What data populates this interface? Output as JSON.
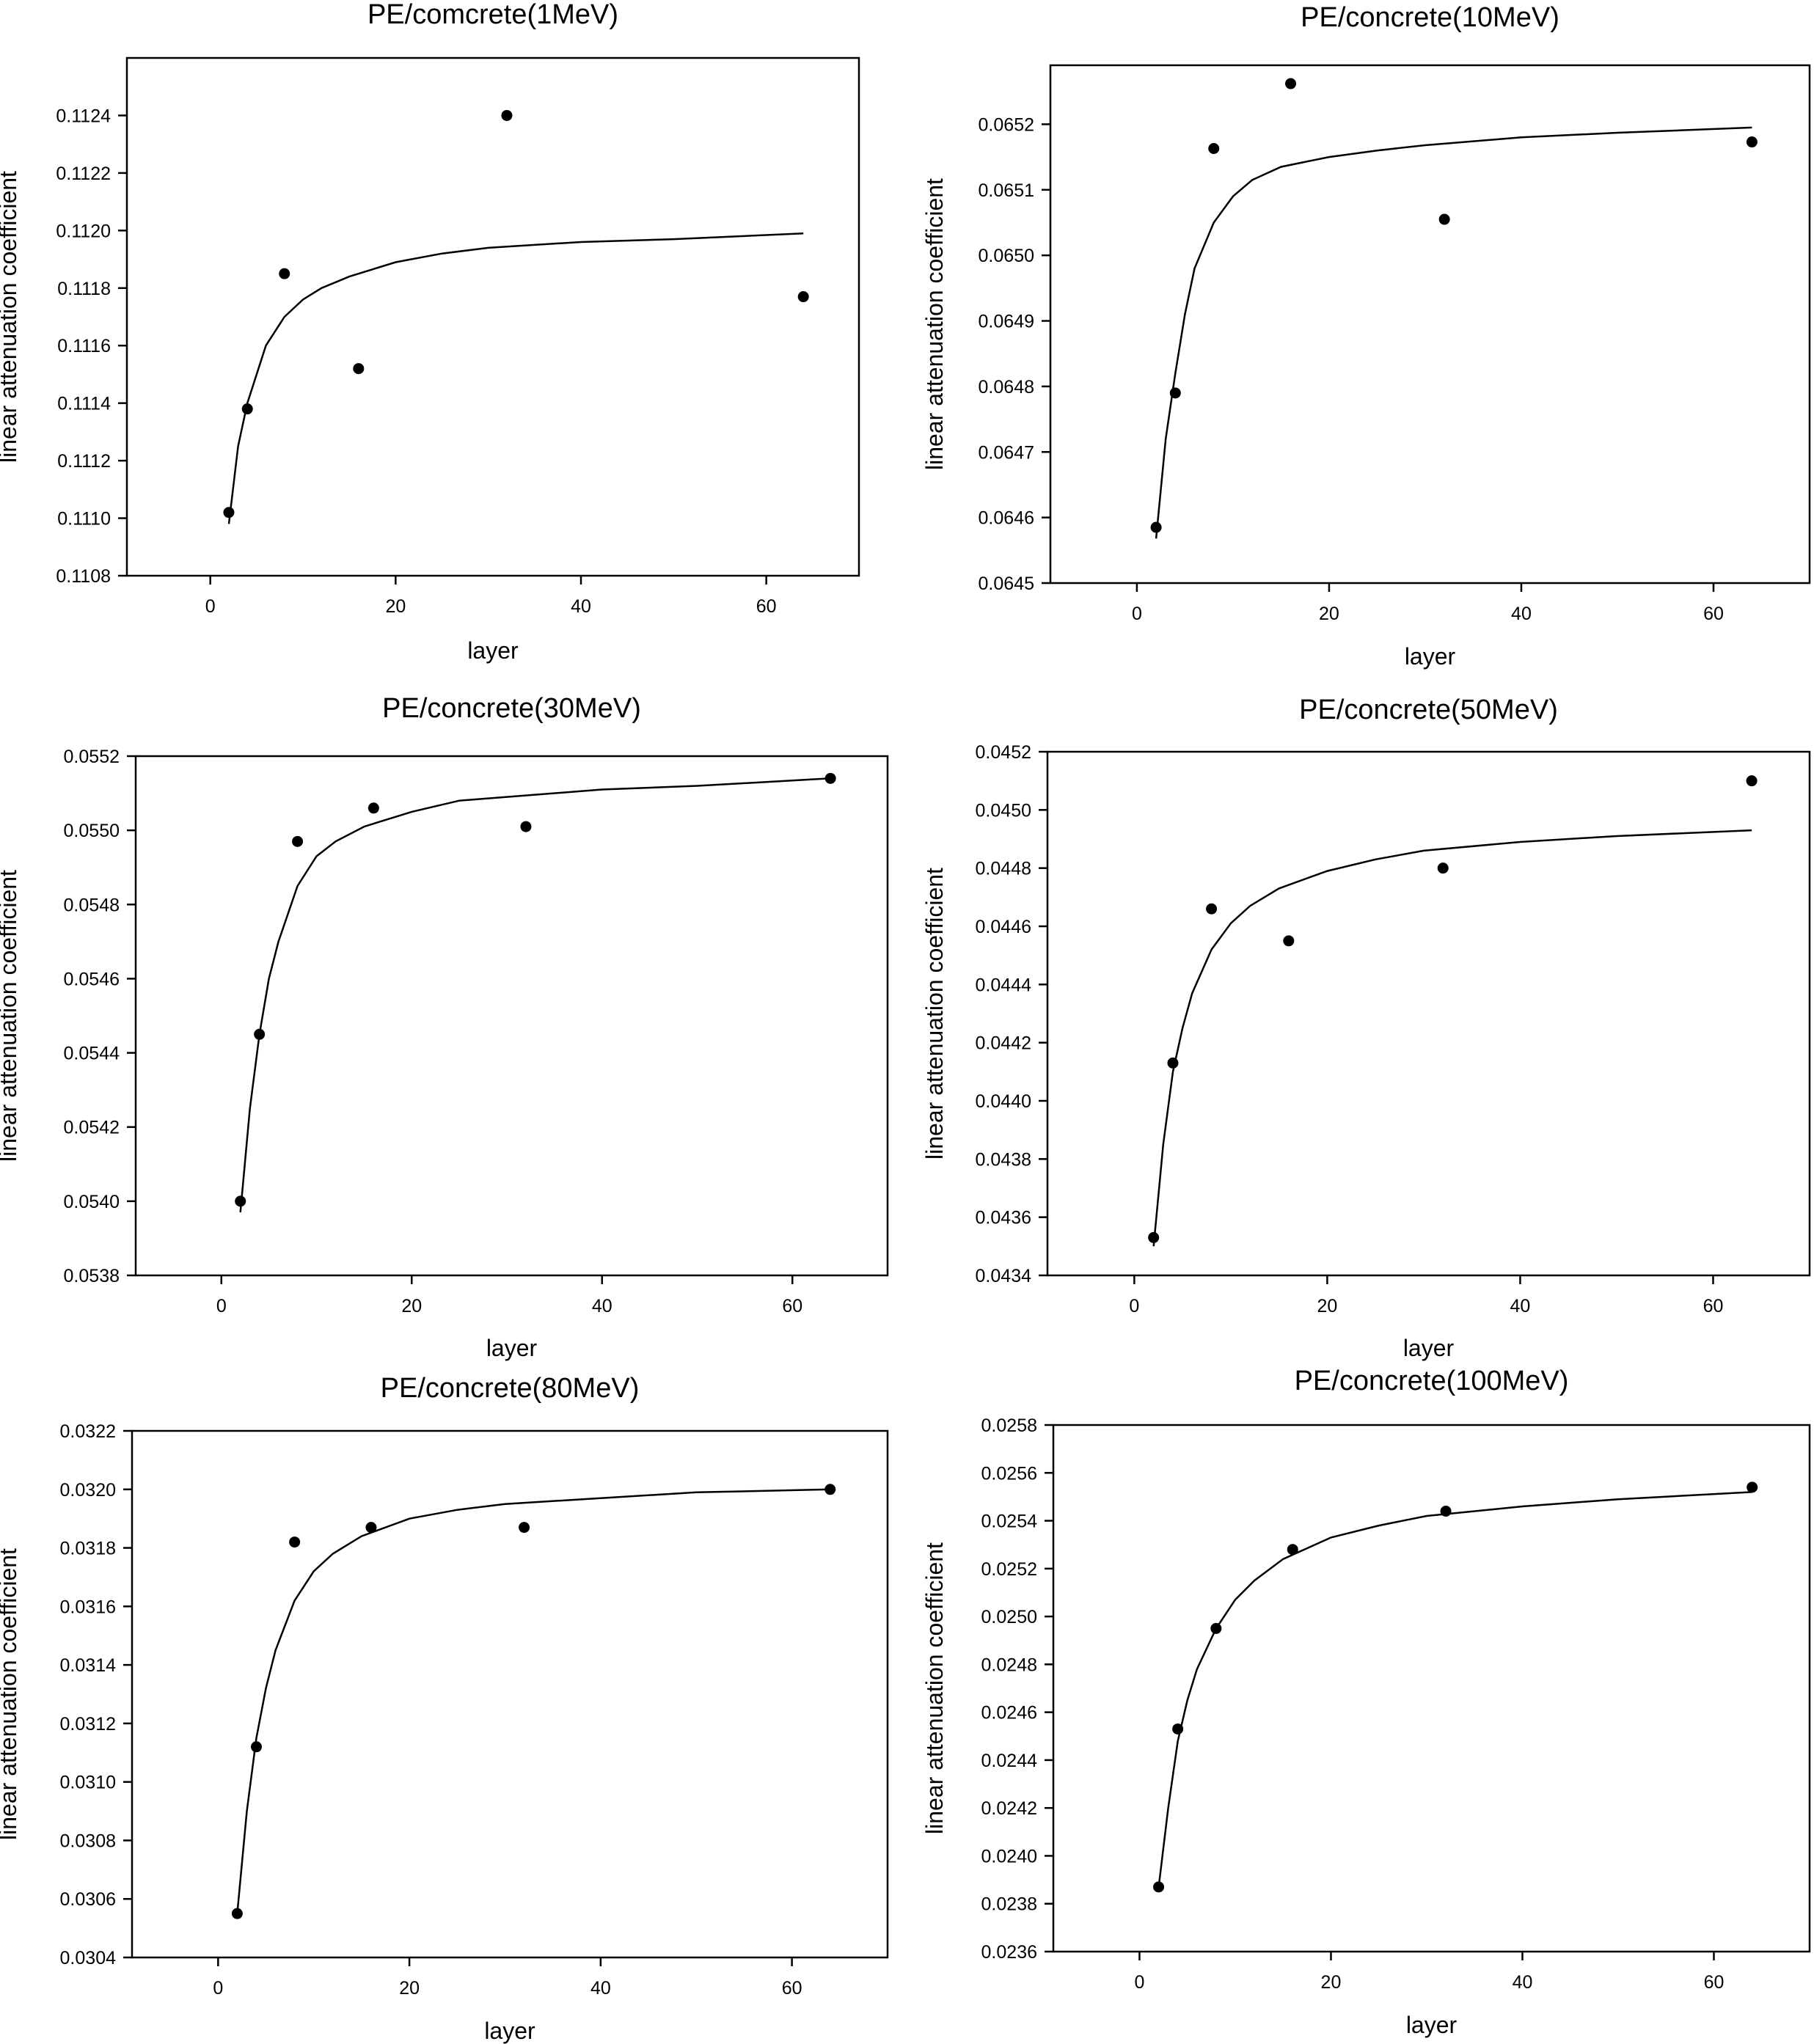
{
  "chart_data": [
    {
      "type": "scatter",
      "title": "PE/comcrete(1MeV)",
      "xlabel": "layer",
      "ylabel": "linear attenuation coefficient",
      "xlim": [
        -9,
        70
      ],
      "ylim": [
        0.1108,
        0.1126
      ],
      "x_ticks": [
        0,
        20,
        40,
        60
      ],
      "y_ticks": [
        0.1108,
        0.111,
        0.1112,
        0.1114,
        0.1116,
        0.1118,
        0.112,
        0.1122,
        0.1124
      ],
      "series": [
        {
          "points": [
            [
              2,
              0.11102
            ],
            [
              4,
              0.11138
            ],
            [
              8,
              0.11185
            ],
            [
              16,
              0.11152
            ],
            [
              32,
              0.1124
            ],
            [
              64,
              0.11177
            ]
          ],
          "fit": [
            [
              2,
              0.11098
            ],
            [
              3,
              0.11125
            ],
            [
              4,
              0.1114
            ],
            [
              6,
              0.1116
            ],
            [
              8,
              0.1117
            ],
            [
              10,
              0.11176
            ],
            [
              12,
              0.1118
            ],
            [
              15,
              0.11184
            ],
            [
              20,
              0.11189
            ],
            [
              25,
              0.11192
            ],
            [
              30,
              0.11194
            ],
            [
              35,
              0.11195
            ],
            [
              40,
              0.11196
            ],
            [
              50,
              0.11197
            ],
            [
              64,
              0.11199
            ]
          ]
        }
      ]
    },
    {
      "type": "scatter",
      "title": "PE/concrete(10MeV)",
      "xlabel": "layer",
      "ylabel": "linear attenuation coefficient",
      "xlim": [
        -9,
        70
      ],
      "ylim": [
        0.0645,
        0.06529
      ],
      "x_ticks": [
        0,
        20,
        40,
        60
      ],
      "y_ticks": [
        0.0645,
        0.0646,
        0.0647,
        0.0648,
        0.0649,
        0.065,
        0.0651,
        0.0652
      ],
      "series": [
        {
          "points": [
            [
              2,
              0.064585
            ],
            [
              4,
              0.06479
            ],
            [
              8,
              0.065163
            ],
            [
              16,
              0.065262
            ],
            [
              32,
              0.065055
            ],
            [
              64,
              0.065173
            ]
          ],
          "fit": [
            [
              2,
              0.064568
            ],
            [
              3,
              0.06472
            ],
            [
              4,
              0.06482
            ],
            [
              5,
              0.06491
            ],
            [
              6,
              0.06498
            ],
            [
              8,
              0.06505
            ],
            [
              10,
              0.06509
            ],
            [
              12,
              0.065115
            ],
            [
              15,
              0.065135
            ],
            [
              20,
              0.06515
            ],
            [
              25,
              0.06516
            ],
            [
              30,
              0.065168
            ],
            [
              40,
              0.06518
            ],
            [
              50,
              0.065187
            ],
            [
              64,
              0.065195
            ]
          ]
        }
      ]
    },
    {
      "type": "scatter",
      "title": "PE/concrete(30MeV)",
      "xlabel": "layer",
      "ylabel": "linear attenuation coefficient",
      "xlim": [
        -9,
        70
      ],
      "ylim": [
        0.0538,
        0.0552
      ],
      "x_ticks": [
        0,
        20,
        40,
        60
      ],
      "y_ticks": [
        0.0538,
        0.054,
        0.0542,
        0.0544,
        0.0546,
        0.0548,
        0.055,
        0.0552
      ],
      "series": [
        {
          "points": [
            [
              2,
              0.054
            ],
            [
              4,
              0.05445
            ],
            [
              8,
              0.05497
            ],
            [
              16,
              0.05506
            ],
            [
              32,
              0.05501
            ],
            [
              64,
              0.05514
            ]
          ],
          "fit": [
            [
              2,
              0.05397
            ],
            [
              3,
              0.05425
            ],
            [
              4,
              0.05445
            ],
            [
              5,
              0.0546
            ],
            [
              6,
              0.0547
            ],
            [
              8,
              0.05485
            ],
            [
              10,
              0.05493
            ],
            [
              12,
              0.05497
            ],
            [
              15,
              0.05501
            ],
            [
              20,
              0.05505
            ],
            [
              25,
              0.05508
            ],
            [
              30,
              0.05509
            ],
            [
              40,
              0.05511
            ],
            [
              50,
              0.05512
            ],
            [
              64,
              0.05514
            ]
          ]
        }
      ]
    },
    {
      "type": "scatter",
      "title": "PE/concrete(50MeV)",
      "xlabel": "layer",
      "ylabel": "linear attenuation coefficient",
      "xlim": [
        -9,
        70
      ],
      "ylim": [
        0.0434,
        0.0452
      ],
      "x_ticks": [
        0,
        20,
        40,
        60
      ],
      "y_ticks": [
        0.0434,
        0.0436,
        0.0438,
        0.044,
        0.0442,
        0.0444,
        0.0446,
        0.0448,
        0.045,
        0.0452
      ],
      "series": [
        {
          "points": [
            [
              2,
              0.04353
            ],
            [
              4,
              0.04413
            ],
            [
              8,
              0.04466
            ],
            [
              16,
              0.04455
            ],
            [
              32,
              0.0448
            ],
            [
              64,
              0.0451
            ]
          ],
          "fit": [
            [
              2,
              0.0435
            ],
            [
              3,
              0.04385
            ],
            [
              4,
              0.0441
            ],
            [
              5,
              0.04425
            ],
            [
              6,
              0.04437
            ],
            [
              8,
              0.04452
            ],
            [
              10,
              0.04461
            ],
            [
              12,
              0.04467
            ],
            [
              15,
              0.04473
            ],
            [
              20,
              0.04479
            ],
            [
              25,
              0.04483
            ],
            [
              30,
              0.04486
            ],
            [
              40,
              0.04489
            ],
            [
              50,
              0.04491
            ],
            [
              64,
              0.04493
            ]
          ]
        }
      ]
    },
    {
      "type": "scatter",
      "title": "PE/concrete(80MeV)",
      "xlabel": "layer",
      "ylabel": "linear attenuation coefficient",
      "xlim": [
        -9,
        70
      ],
      "ylim": [
        0.0304,
        0.0322
      ],
      "x_ticks": [
        0,
        20,
        40,
        60
      ],
      "y_ticks": [
        0.0304,
        0.0306,
        0.0308,
        0.031,
        0.0312,
        0.0314,
        0.0316,
        0.0318,
        0.032,
        0.0322
      ],
      "series": [
        {
          "points": [
            [
              2,
              0.03055
            ],
            [
              4,
              0.03112
            ],
            [
              8,
              0.03182
            ],
            [
              16,
              0.03187
            ],
            [
              32,
              0.03187
            ],
            [
              64,
              0.032
            ]
          ],
          "fit": [
            [
              2,
              0.03055
            ],
            [
              3,
              0.0309
            ],
            [
              4,
              0.03115
            ],
            [
              5,
              0.03132
            ],
            [
              6,
              0.03145
            ],
            [
              8,
              0.03162
            ],
            [
              10,
              0.03172
            ],
            [
              12,
              0.03178
            ],
            [
              15,
              0.03184
            ],
            [
              20,
              0.0319
            ],
            [
              25,
              0.03193
            ],
            [
              30,
              0.03195
            ],
            [
              40,
              0.03197
            ],
            [
              50,
              0.03199
            ],
            [
              64,
              0.032
            ]
          ]
        }
      ]
    },
    {
      "type": "scatter",
      "title": "PE/concrete(100MeV)",
      "xlabel": "layer",
      "ylabel": "linear attenuation coefficient",
      "xlim": [
        -9,
        70
      ],
      "ylim": [
        0.0236,
        0.0258
      ],
      "x_ticks": [
        0,
        20,
        40,
        60
      ],
      "y_ticks": [
        0.0236,
        0.0238,
        0.024,
        0.0242,
        0.0244,
        0.0246,
        0.0248,
        0.025,
        0.0252,
        0.0254,
        0.0256,
        0.0258
      ],
      "series": [
        {
          "points": [
            [
              2,
              0.02387
            ],
            [
              4,
              0.02453
            ],
            [
              8,
              0.02495
            ],
            [
              16,
              0.02528
            ],
            [
              32,
              0.02544
            ],
            [
              64,
              0.02554
            ]
          ],
          "fit": [
            [
              2,
              0.02387
            ],
            [
              3,
              0.0242
            ],
            [
              4,
              0.02448
            ],
            [
              5,
              0.02465
            ],
            [
              6,
              0.02478
            ],
            [
              8,
              0.02495
            ],
            [
              10,
              0.02507
            ],
            [
              12,
              0.02515
            ],
            [
              15,
              0.02524
            ],
            [
              20,
              0.02533
            ],
            [
              25,
              0.02538
            ],
            [
              30,
              0.02542
            ],
            [
              40,
              0.02546
            ],
            [
              50,
              0.02549
            ],
            [
              64,
              0.02552
            ]
          ]
        }
      ]
    }
  ]
}
